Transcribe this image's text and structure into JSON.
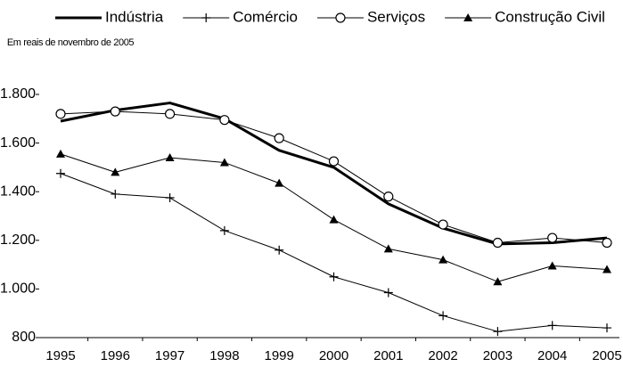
{
  "chart_data": {
    "type": "line",
    "ylabel": "Em reais de novembro de 2005",
    "categories": [
      "1995",
      "1996",
      "1997",
      "1998",
      "1999",
      "2000",
      "2001",
      "2002",
      "2003",
      "2004",
      "2005"
    ],
    "ylim": [
      800,
      1800
    ],
    "yticks": [
      {
        "value": 800,
        "label": "800"
      },
      {
        "value": 1000,
        "label": "1.000"
      },
      {
        "value": 1200,
        "label": "1.200"
      },
      {
        "value": 1400,
        "label": "1.400"
      },
      {
        "value": 1600,
        "label": "1.600"
      },
      {
        "value": 1800,
        "label": "1.800"
      }
    ],
    "legend": "top",
    "series": [
      {
        "name": "Indústria",
        "color": "#000000",
        "line_width": 3,
        "marker": "none",
        "values": [
          1690,
          1735,
          1765,
          1700,
          1570,
          1500,
          1350,
          1250,
          1185,
          1190,
          1210
        ]
      },
      {
        "name": "Comércio",
        "color": "#000000",
        "line_width": 1,
        "marker": "plus",
        "values": [
          1475,
          1390,
          1375,
          1240,
          1160,
          1050,
          985,
          890,
          825,
          850,
          840
        ]
      },
      {
        "name": "Serviços",
        "color": "#000000",
        "line_width": 1,
        "marker": "circle",
        "values": [
          1720,
          1730,
          1720,
          1695,
          1620,
          1525,
          1380,
          1265,
          1190,
          1210,
          1190
        ]
      },
      {
        "name": "Construção Civil",
        "color": "#000000",
        "line_width": 1,
        "marker": "triangle",
        "values": [
          1555,
          1480,
          1540,
          1520,
          1435,
          1285,
          1165,
          1120,
          1030,
          1095,
          1080
        ]
      }
    ]
  }
}
